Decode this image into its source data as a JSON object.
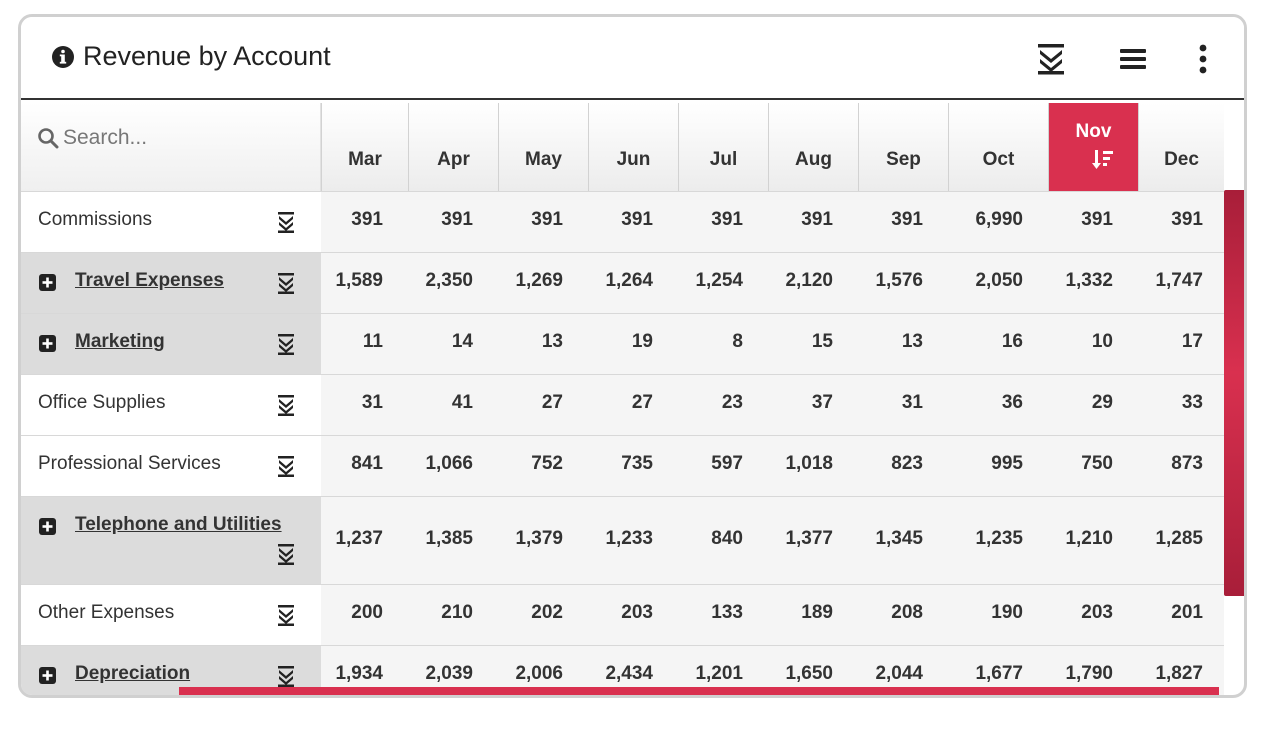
{
  "header": {
    "title": "Revenue by Account",
    "info_icon": "info-circle-icon",
    "actions": [
      "expand-all-icon",
      "list-menu-icon",
      "kebab-menu-icon"
    ]
  },
  "search": {
    "placeholder": "Search...",
    "value": ""
  },
  "columns": [
    "Mar",
    "Apr",
    "May",
    "Jun",
    "Jul",
    "Aug",
    "Sep",
    "Oct",
    "Nov",
    "Dec"
  ],
  "sorted_column": "Nov",
  "colors": {
    "accent": "#d9304f",
    "label_grey": "#dcdcdc",
    "cell_bg": "#f5f5f5"
  },
  "rows": [
    {
      "label": "Commissions",
      "group": false,
      "values": [
        "391",
        "391",
        "391",
        "391",
        "391",
        "391",
        "391",
        "6,990",
        "391",
        "391"
      ]
    },
    {
      "label": "Travel Expenses",
      "group": true,
      "values": [
        "1,589",
        "2,350",
        "1,269",
        "1,264",
        "1,254",
        "2,120",
        "1,576",
        "2,050",
        "1,332",
        "1,747"
      ]
    },
    {
      "label": "Marketing",
      "group": true,
      "values": [
        "11",
        "14",
        "13",
        "19",
        "8",
        "15",
        "13",
        "16",
        "10",
        "17"
      ]
    },
    {
      "label": "Office Supplies",
      "group": false,
      "values": [
        "31",
        "41",
        "27",
        "27",
        "23",
        "37",
        "31",
        "36",
        "29",
        "33"
      ]
    },
    {
      "label": "Professional Services",
      "group": false,
      "values": [
        "841",
        "1,066",
        "752",
        "735",
        "597",
        "1,018",
        "823",
        "995",
        "750",
        "873"
      ]
    },
    {
      "label": "Telephone and Utilities",
      "group": true,
      "values": [
        "1,237",
        "1,385",
        "1,379",
        "1,233",
        "840",
        "1,377",
        "1,345",
        "1,235",
        "1,210",
        "1,285"
      ]
    },
    {
      "label": "Other Expenses",
      "group": false,
      "values": [
        "200",
        "210",
        "202",
        "203",
        "133",
        "189",
        "208",
        "190",
        "203",
        "201"
      ]
    },
    {
      "label": "Depreciation",
      "group": true,
      "values": [
        "1,934",
        "2,039",
        "2,006",
        "2,434",
        "1,201",
        "1,650",
        "2,044",
        "1,677",
        "1,790",
        "1,827"
      ]
    }
  ]
}
